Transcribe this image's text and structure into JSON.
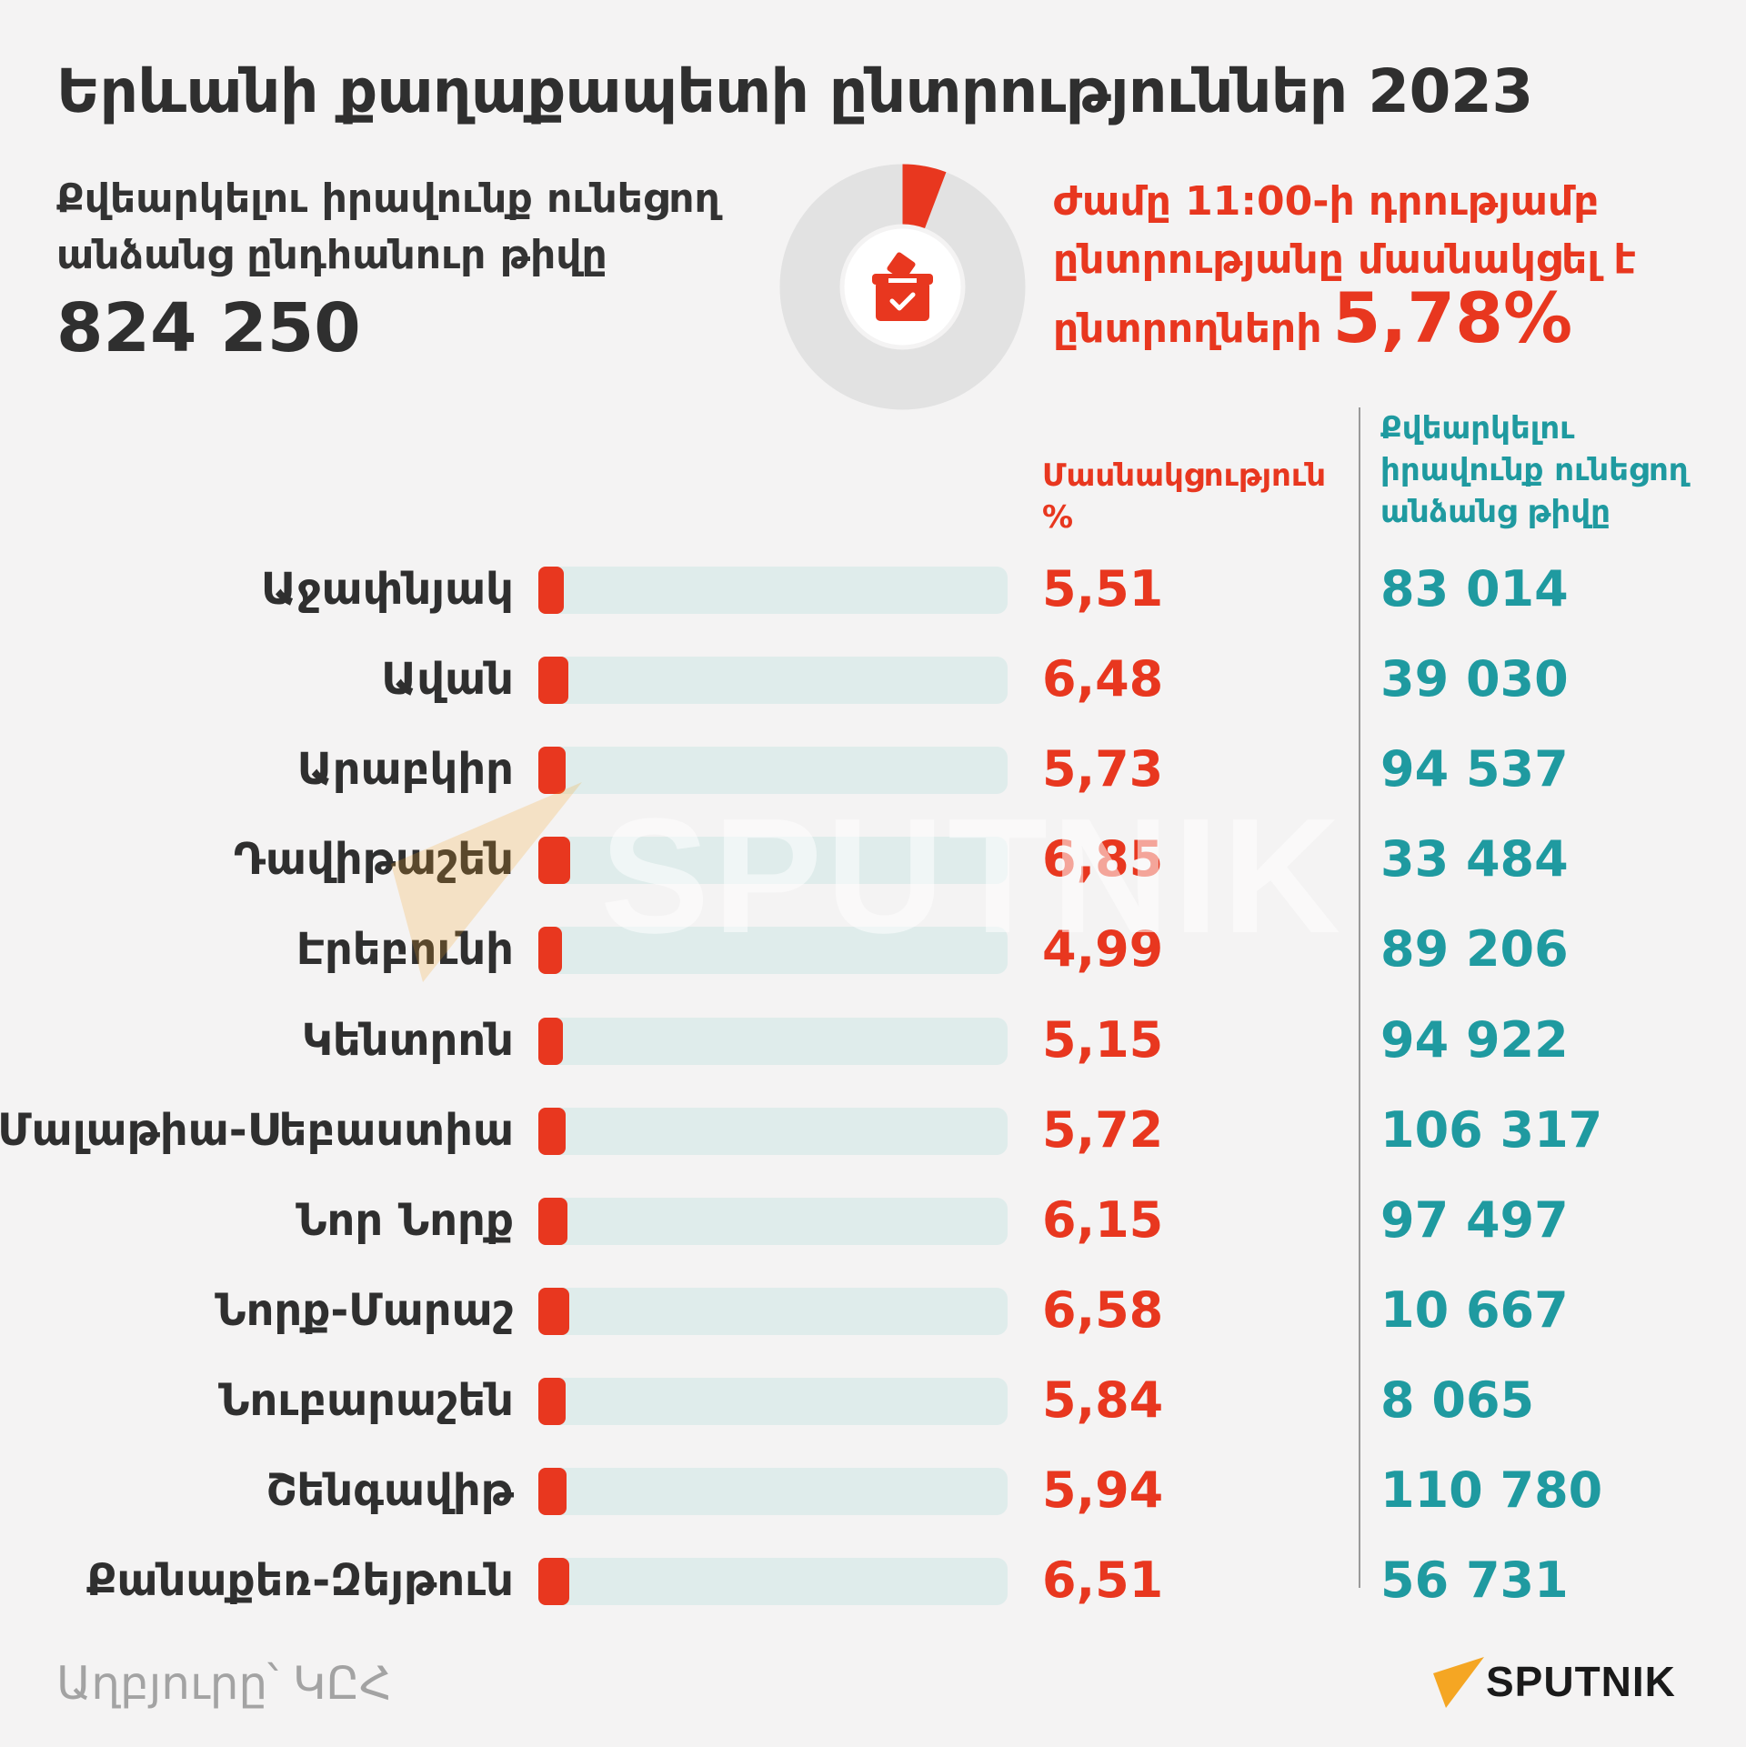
{
  "header": {
    "title": "Երևանի քաղաքապետի ընտրություններ 2023",
    "voters_caption": "Քվեարկելու իրավունք ունեցող անձանց ընդհանուր թիվը",
    "voters_total": "824 250",
    "turnout_caption": "Ժամը 11:00-ի դրությամբ ընտրությանը մասնակցել է ընտրողների",
    "turnout_value": "5,78%",
    "turnout_fraction": 0.0578
  },
  "columns": {
    "participation_header": "Մասնակցություն %",
    "voters_header": "Քվեարկելու իրավունք ունեցող անձանց թիվը"
  },
  "chart_data": {
    "type": "bar",
    "categories": [
      "Աջափնյակ",
      "Ավան",
      "Արաբկիր",
      "Դավիթաշեն",
      "Էրեբունի",
      "Կենտրոն",
      "Մալաթիա-Սեբաստիա",
      "Նոր Նորք",
      "Նորք-Մարաշ",
      "Նուբարաշեն",
      "Շենգավիթ",
      "Քանաքեռ-Զեյթուն"
    ],
    "values": [
      5.51,
      6.48,
      5.73,
      6.85,
      4.99,
      5.15,
      5.72,
      6.15,
      6.58,
      5.84,
      5.94,
      6.51
    ],
    "value_labels": [
      "5,51",
      "6,48",
      "5,73",
      "6,85",
      "4,99",
      "5,15",
      "5,72",
      "6,15",
      "6,58",
      "5,84",
      "5,94",
      "6,51"
    ],
    "registered_voters": [
      "83 014",
      "39 030",
      "94 537",
      "33 484",
      "89 206",
      "94 922",
      "106 317",
      "97 497",
      "10 667",
      "8 065",
      "110 780",
      "56 731"
    ],
    "xlim": [
      0,
      100
    ],
    "orientation": "horizontal",
    "grid": false
  },
  "footer": {
    "source": "Աղբյուրը՝ ԿԸՀ",
    "brand": "SPUTNIK",
    "watermark": "SPUTNIK"
  },
  "colors": {
    "accent_red": "#e8371f",
    "accent_teal": "#1f9aa0",
    "track": "#dfeceb",
    "logo_orange": "#f5a623"
  }
}
